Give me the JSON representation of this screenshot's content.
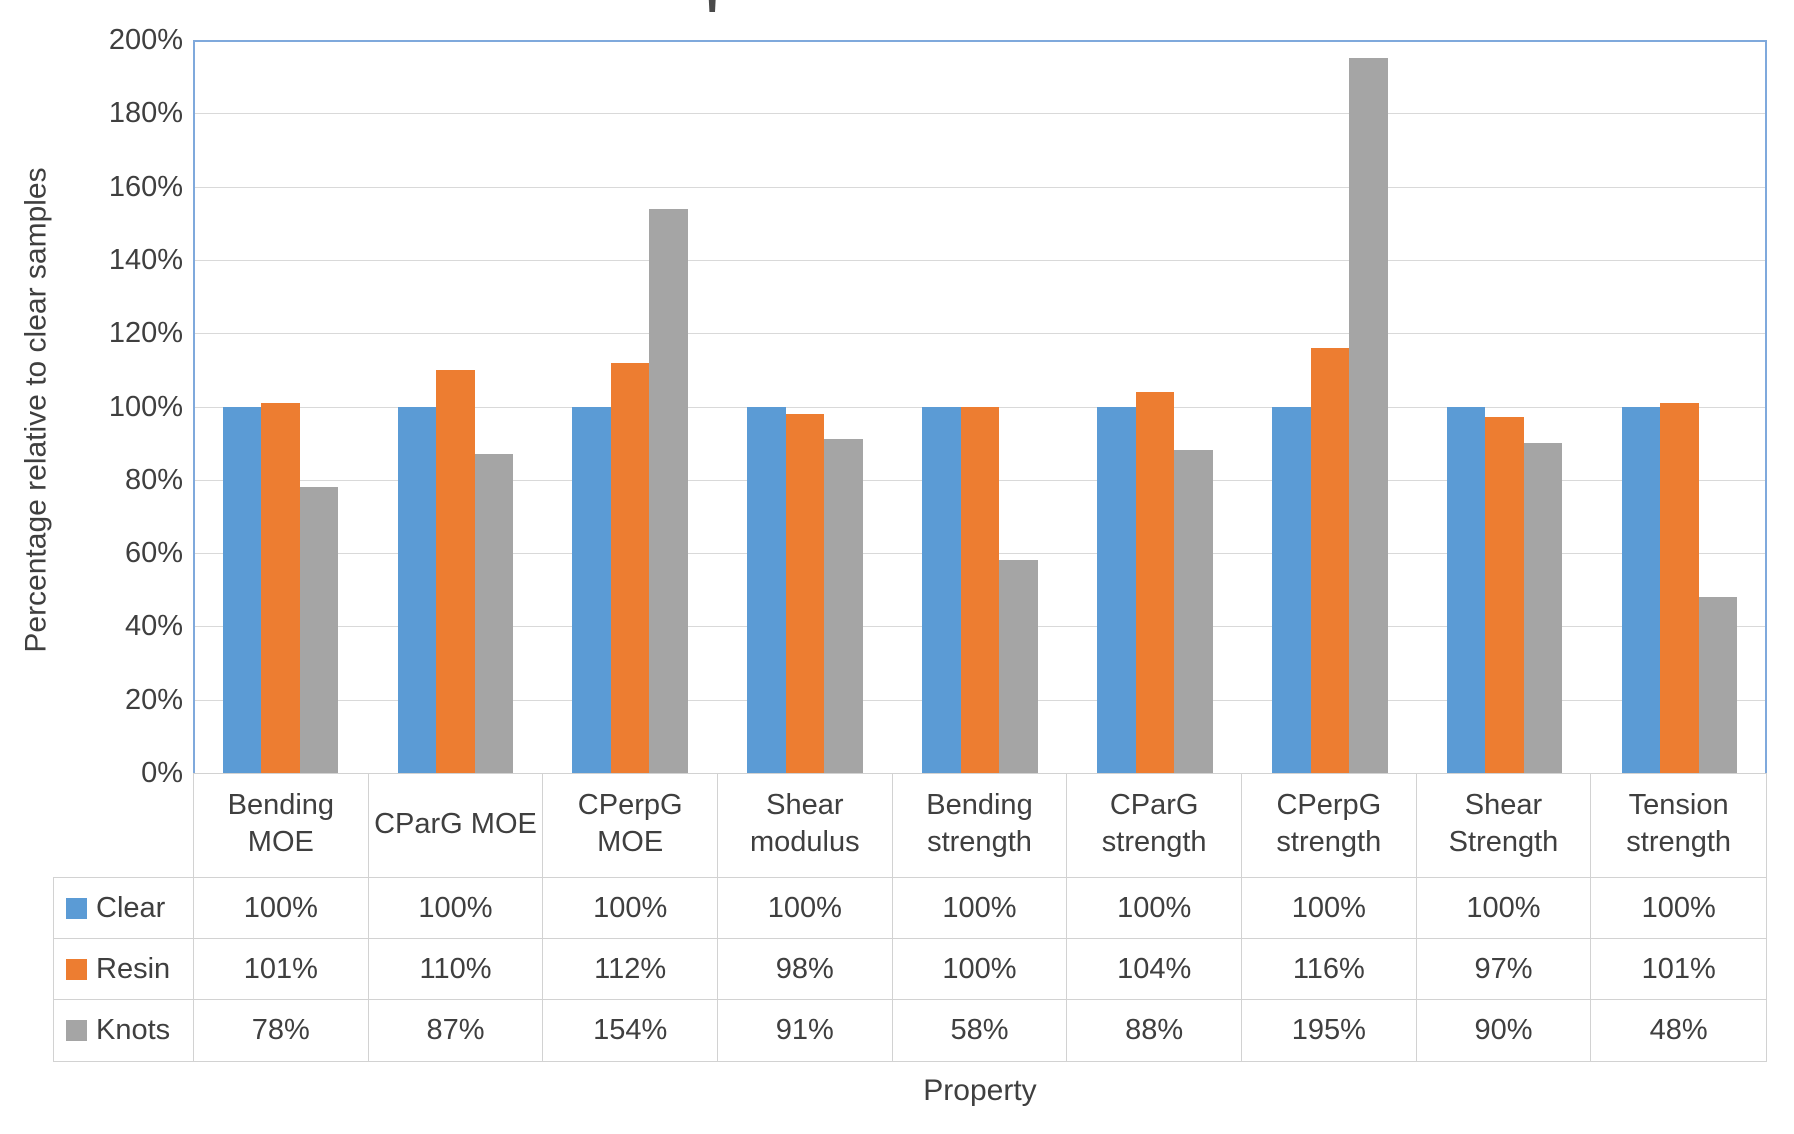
{
  "chart_data": {
    "type": "bar",
    "title_mark": "'",
    "ylabel": "Percentage relative to clear samples",
    "xlabel": "Property",
    "ylim": [
      0,
      200
    ],
    "ytick_step": 20,
    "ytick_labels": [
      "0%",
      "20%",
      "40%",
      "60%",
      "80%",
      "100%",
      "120%",
      "140%",
      "160%",
      "180%",
      "200%"
    ],
    "categories": [
      "Bending MOE",
      "CParG MOE",
      "CPerpG MOE",
      "Shear modulus",
      "Bending strength",
      "CParG strength",
      "CPerpG strength",
      "Shear Strength",
      "Tension strength"
    ],
    "series": [
      {
        "name": "Clear",
        "color": "#5B9BD5",
        "values": [
          100,
          100,
          100,
          100,
          100,
          100,
          100,
          100,
          100
        ]
      },
      {
        "name": "Resin",
        "color": "#ED7D31",
        "values": [
          101,
          110,
          112,
          98,
          100,
          104,
          116,
          97,
          101
        ]
      },
      {
        "name": "Knots",
        "color": "#A5A5A5",
        "values": [
          78,
          87,
          154,
          91,
          58,
          88,
          195,
          90,
          48
        ]
      }
    ],
    "value_suffix": "%",
    "legend_position": "data-table-left",
    "grid": true
  },
  "colors": {
    "plot_border": "#7FA9DC",
    "gridline": "#D9D9D9",
    "table_border": "#D2D2D2",
    "text": "#3F3F3F"
  }
}
